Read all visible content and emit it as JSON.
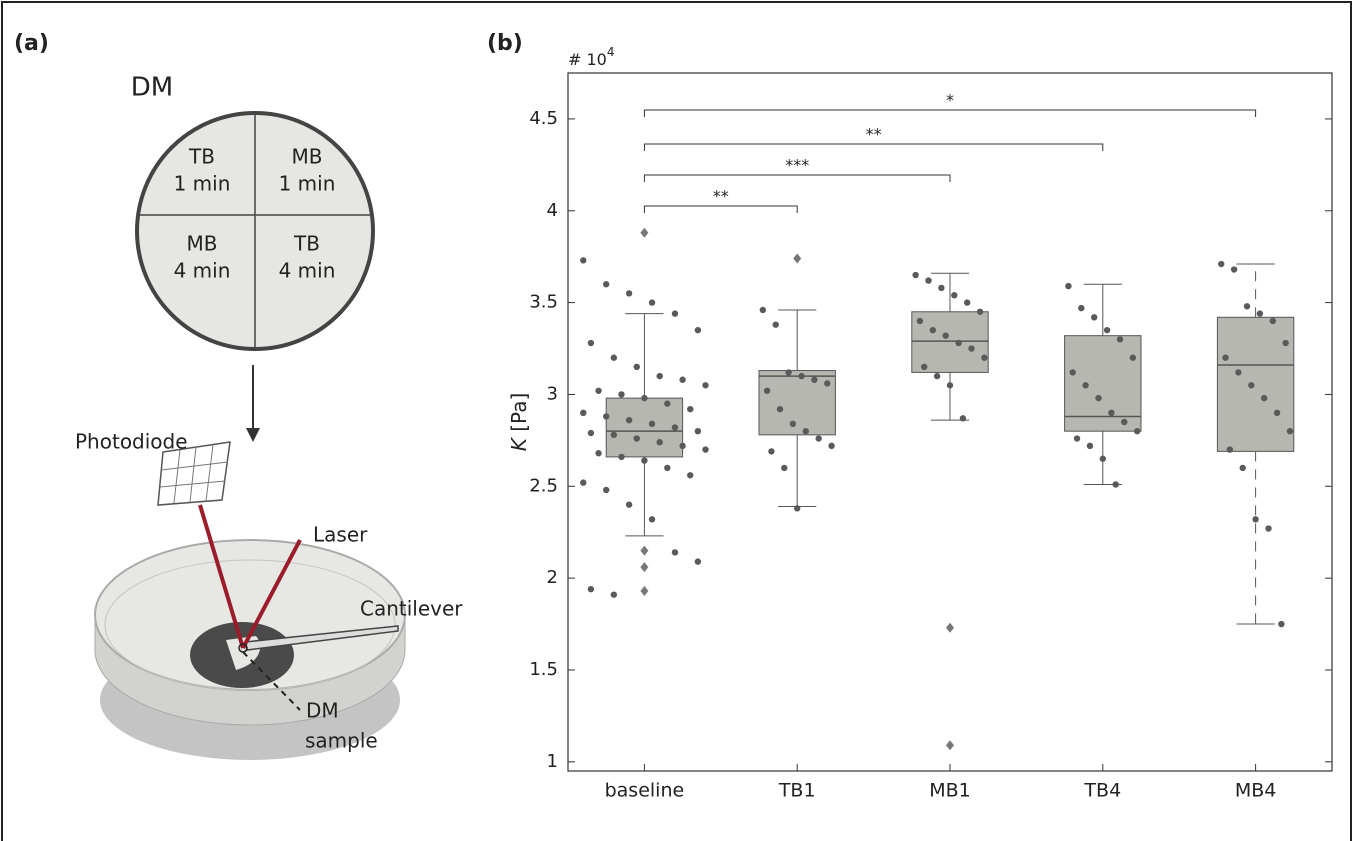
{
  "panel_a": {
    "label": "(a)",
    "circle_title": "DM",
    "quadrants": [
      {
        "name": "TB",
        "time": "1 min"
      },
      {
        "name": "MB",
        "time": "1 min"
      },
      {
        "name": "MB",
        "time": "4 min"
      },
      {
        "name": "TB",
        "time": "4 min"
      }
    ],
    "photodiode": "Photodiode",
    "laser": "Laser",
    "cantilever": "Cantilever",
    "sample_line1": "DM",
    "sample_line2": "sample"
  },
  "chart_data": {
    "type": "box",
    "panel_label": "(b)",
    "y_label_symbol": "K",
    "y_label_unit": "[Pa]",
    "y_multiplier": "# 10",
    "y_multiplier_exp": "4",
    "categories": [
      "baseline",
      "TB1",
      "MB1",
      "TB4",
      "MB4"
    ],
    "color": "#b7b7b1",
    "point_color": "#5a5a5a",
    "ylim": [
      0.95,
      4.75
    ],
    "yticks": [
      1,
      1.5,
      2,
      2.5,
      3,
      3.5,
      4,
      4.5
    ],
    "boxes": [
      {
        "whisker_low": 2.23,
        "q1": 2.66,
        "median": 2.8,
        "q3": 2.98,
        "whisker_high": 3.44,
        "outliers": [
          3.88,
          2.15,
          2.06,
          1.93
        ],
        "points": [
          3.73,
          3.6,
          3.55,
          3.5,
          3.44,
          3.35,
          3.28,
          3.2,
          3.15,
          3.1,
          3.08,
          3.05,
          3.02,
          3.0,
          2.98,
          2.95,
          2.92,
          2.9,
          2.88,
          2.86,
          2.84,
          2.82,
          2.8,
          2.79,
          2.78,
          2.76,
          2.74,
          2.72,
          2.7,
          2.68,
          2.66,
          2.64,
          2.6,
          2.56,
          2.52,
          2.48,
          2.4,
          2.32,
          2.14,
          2.09,
          1.94,
          1.91
        ]
      },
      {
        "whisker_low": 2.39,
        "q1": 2.78,
        "median": 3.1,
        "q3": 3.13,
        "whisker_high": 3.46,
        "outliers": [
          3.74
        ],
        "points": [
          3.46,
          3.38,
          3.12,
          3.1,
          3.08,
          3.06,
          3.02,
          2.92,
          2.84,
          2.8,
          2.76,
          2.72,
          2.69,
          2.6,
          2.38
        ]
      },
      {
        "whisker_low": 2.86,
        "q1": 3.12,
        "median": 3.29,
        "q3": 3.45,
        "whisker_high": 3.66,
        "outliers": [
          1.73,
          1.09
        ],
        "points": [
          3.65,
          3.62,
          3.58,
          3.54,
          3.5,
          3.45,
          3.4,
          3.35,
          3.32,
          3.28,
          3.25,
          3.2,
          3.15,
          3.1,
          3.05,
          2.87
        ]
      },
      {
        "whisker_low": 2.51,
        "q1": 2.8,
        "median": 2.88,
        "q3": 3.32,
        "whisker_high": 3.6,
        "outliers": [],
        "points": [
          3.59,
          3.47,
          3.42,
          3.35,
          3.3,
          3.2,
          3.12,
          3.05,
          2.98,
          2.9,
          2.85,
          2.8,
          2.76,
          2.72,
          2.65,
          2.51
        ]
      },
      {
        "whisker_low": 1.75,
        "q1": 2.69,
        "median": 3.16,
        "q3": 3.42,
        "whisker_high": 3.71,
        "outliers": [],
        "points": [
          3.71,
          3.68,
          3.48,
          3.44,
          3.4,
          3.28,
          3.2,
          3.12,
          3.05,
          2.98,
          2.9,
          2.8,
          2.7,
          2.6,
          2.32,
          2.27,
          1.75
        ]
      }
    ],
    "significance": [
      {
        "from": 0,
        "to": 1,
        "label": "**"
      },
      {
        "from": 0,
        "to": 2,
        "label": "***"
      },
      {
        "from": 0,
        "to": 3,
        "label": "**"
      },
      {
        "from": 0,
        "to": 4,
        "label": "*"
      }
    ]
  }
}
